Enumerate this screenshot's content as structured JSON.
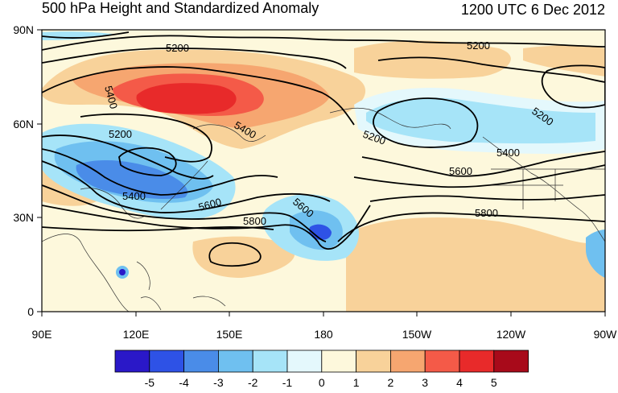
{
  "title": "500 hPa Height and Standardized Anomaly",
  "valid_time": "1200 UTC 6 Dec 2012",
  "lat_ticks": [
    "90N",
    "60N",
    "30N",
    "0"
  ],
  "lon_ticks": [
    "90E",
    "120E",
    "150E",
    "180",
    "150W",
    "120W",
    "90W"
  ],
  "contour_labels": [
    "5200",
    "5200",
    "5200",
    "5200",
    "5200",
    "5400",
    "5400",
    "5400",
    "5400",
    "5600",
    "5600",
    "5600",
    "5800",
    "5800"
  ],
  "colorbar": {
    "labels": [
      "-5",
      "-4",
      "-3",
      "-2",
      "-1",
      "0",
      "1",
      "2",
      "3",
      "4",
      "5"
    ],
    "colors": [
      "#2a18c8",
      "#2e52e6",
      "#4a8ce8",
      "#6fc0f0",
      "#a6e4f8",
      "#e4f8fc",
      "#fdf8dc",
      "#f8d29a",
      "#f6a670",
      "#f45a48",
      "#e82a2a",
      "#a80a1a"
    ]
  }
}
